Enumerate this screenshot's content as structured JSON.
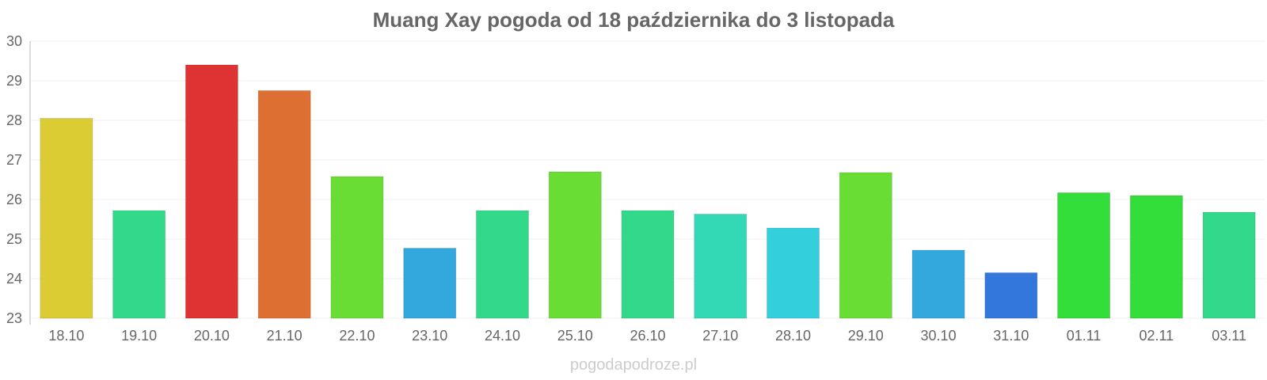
{
  "chart_data": {
    "type": "bar",
    "title": "Muang Xay pogoda od 18 października do 3 listopada",
    "xlabel": "",
    "ylabel": "",
    "ylim": [
      23,
      30
    ],
    "yticks": [
      23,
      24,
      25,
      26,
      27,
      28,
      29,
      30
    ],
    "grid": true,
    "categories": [
      "18.10",
      "19.10",
      "20.10",
      "21.10",
      "22.10",
      "23.10",
      "24.10",
      "25.10",
      "26.10",
      "27.10",
      "28.10",
      "29.10",
      "30.10",
      "31.10",
      "01.11",
      "02.11",
      "03.11"
    ],
    "values": [
      28.05,
      25.72,
      29.4,
      28.75,
      26.58,
      24.77,
      25.72,
      26.7,
      25.72,
      25.63,
      25.28,
      26.68,
      24.72,
      24.15,
      26.17,
      26.1,
      25.68
    ],
    "colors": [
      "#dccc33",
      "#33d98a",
      "#dd3333",
      "#dd6f33",
      "#69dd33",
      "#33a8dd",
      "#33d98a",
      "#69dd33",
      "#33d98a",
      "#33d9b5",
      "#33cfdd",
      "#69dd33",
      "#33a8dd",
      "#3377dd",
      "#33dd3a",
      "#33dd3a",
      "#33d98a"
    ]
  },
  "watermark": "pogodapodroze.pl"
}
